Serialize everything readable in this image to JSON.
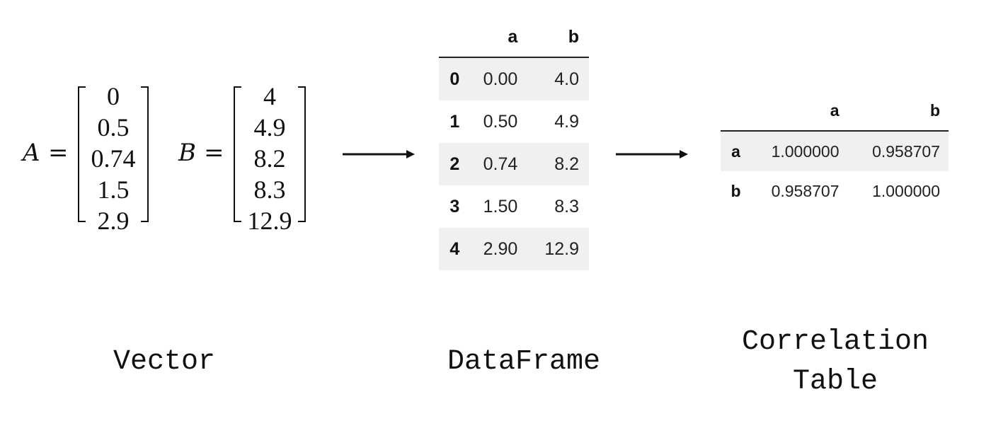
{
  "vectors": [
    {
      "name": "A",
      "equals": "=",
      "values": [
        "0",
        "0.5",
        "0.74",
        "1.5",
        "2.9"
      ]
    },
    {
      "name": "B",
      "equals": "=",
      "values": [
        "4",
        "4.9",
        "8.2",
        "8.3",
        "12.9"
      ]
    }
  ],
  "dataframe": {
    "columns": [
      "a",
      "b"
    ],
    "rows": [
      {
        "index": "0",
        "cells": [
          "0.00",
          "4.0"
        ]
      },
      {
        "index": "1",
        "cells": [
          "0.50",
          "4.9"
        ]
      },
      {
        "index": "2",
        "cells": [
          "0.74",
          "8.2"
        ]
      },
      {
        "index": "3",
        "cells": [
          "1.50",
          "8.3"
        ]
      },
      {
        "index": "4",
        "cells": [
          "2.90",
          "12.9"
        ]
      }
    ]
  },
  "correlation": {
    "columns": [
      "a",
      "b"
    ],
    "rows": [
      {
        "index": "a",
        "cells": [
          "1.000000",
          "0.958707"
        ]
      },
      {
        "index": "b",
        "cells": [
          "0.958707",
          "1.000000"
        ]
      }
    ]
  },
  "captions": {
    "vector": "Vector",
    "dataframe": "DataFrame",
    "correlation_line1": "Correlation",
    "correlation_line2": "Table"
  }
}
